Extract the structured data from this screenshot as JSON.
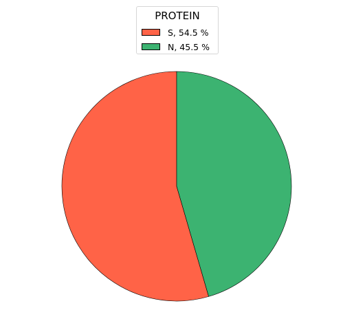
{
  "chart_data": {
    "type": "pie",
    "title": "",
    "legend": {
      "title": "PROTEIN",
      "placement": "top-center",
      "entries": [
        "S, 54.5 %",
        "N, 45.5 %"
      ]
    },
    "slices": [
      {
        "label": "S",
        "value": 54.5,
        "color": "#ff6347"
      },
      {
        "label": "N",
        "value": 45.5,
        "color": "#3cb371"
      }
    ],
    "start_angle_deg": 90,
    "direction": "counterclockwise",
    "edge_color": "#000000"
  }
}
